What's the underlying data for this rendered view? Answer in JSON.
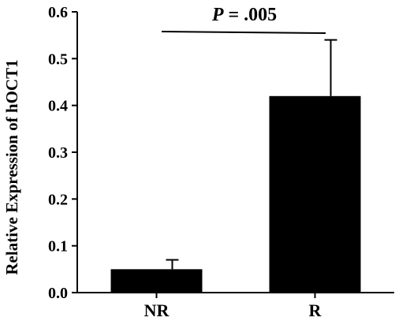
{
  "chart_data": {
    "type": "bar",
    "categories": [
      "NR",
      "R"
    ],
    "values": [
      0.05,
      0.42
    ],
    "errors": [
      0.02,
      0.12
    ],
    "xlabel": "",
    "ylabel": "Relative Expression of hOCT1",
    "ylim": [
      0,
      0.6
    ],
    "yticks": [
      "0.0",
      "0.1",
      "0.2",
      "0.3",
      "0.4",
      "0.5",
      "0.6"
    ],
    "grid": false,
    "bar_color": "#000000",
    "annotation": {
      "p_letter": "P",
      "p_value": " = .005"
    }
  }
}
